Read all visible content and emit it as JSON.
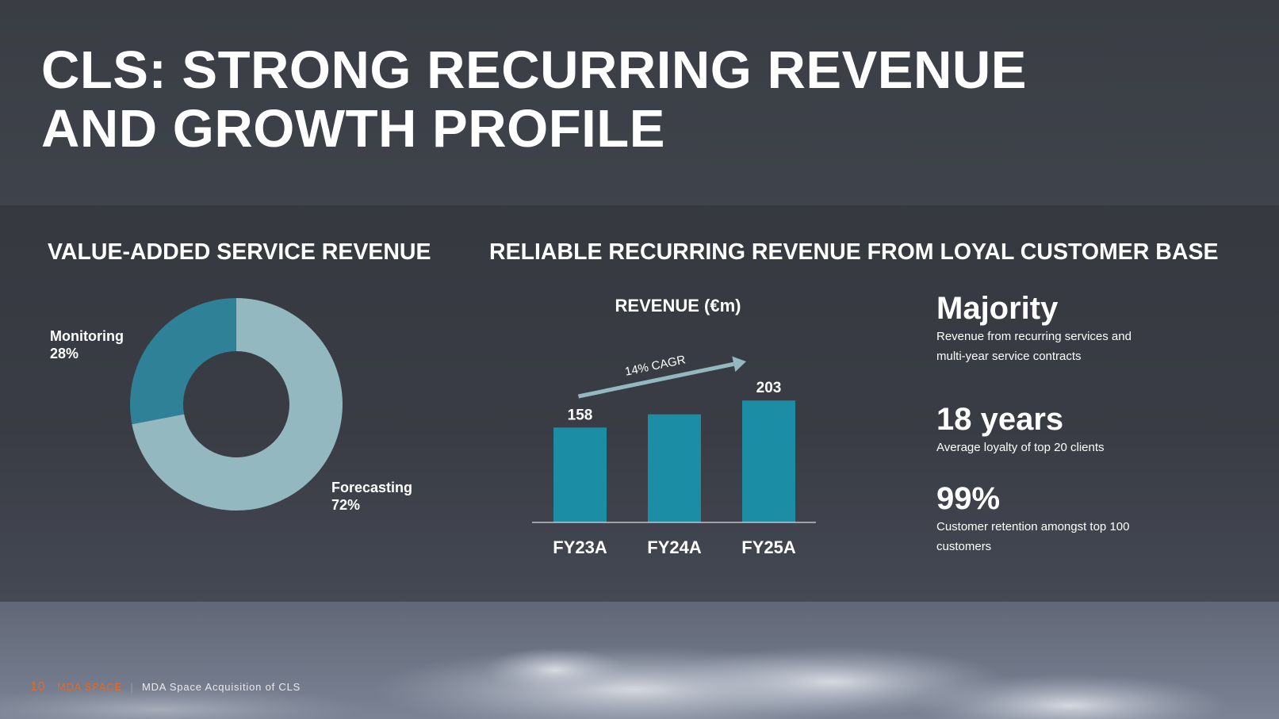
{
  "title": {
    "line1": "CLS: STRONG RECURRING REVENUE",
    "line2": "AND GROWTH PROFILE"
  },
  "sections": {
    "left_heading": "VALUE-ADDED SERVICE REVENUE",
    "right_heading": "RELIABLE RECURRING REVENUE FROM LOYAL CUSTOMER BASE"
  },
  "colors": {
    "accent_teal": "#1b8ea6",
    "monitoring_slice": "#2f8197",
    "forecasting_slice": "#93b8c0",
    "cagr_arrow": "#93b8c0",
    "footer_orange": "#e36a2a"
  },
  "chart_data": [
    {
      "type": "pie",
      "title": "",
      "categories": [
        "Monitoring",
        "Forecasting"
      ],
      "values": [
        28,
        72
      ],
      "labels": [
        {
          "name": "Monitoring",
          "pct": "28%"
        },
        {
          "name": "Forecasting",
          "pct": "72%"
        }
      ],
      "donut": true
    },
    {
      "type": "bar",
      "title": "REVENUE (€m)",
      "categories": [
        "FY23A",
        "FY24A",
        "FY25A"
      ],
      "values": [
        158,
        180,
        203
      ],
      "data_labels": [
        "158",
        "",
        "203"
      ],
      "annotation": "14% CAGR",
      "xlabel": "",
      "ylabel": "",
      "ylim": [
        0,
        210
      ],
      "grid": false
    }
  ],
  "kpis": [
    {
      "value": "Majority",
      "desc_lines": [
        "Revenue from recurring services and",
        "multi-year service contracts"
      ]
    },
    {
      "value": "18 years",
      "desc_lines": [
        "Average loyalty of top 20 clients"
      ]
    },
    {
      "value": "99%",
      "desc_lines": [
        "Customer retention amongst top 100 customers"
      ]
    }
  ],
  "footer": {
    "page": "10",
    "brand": "MDA SPACE",
    "separator": "|",
    "subtitle": "MDA Space Acquisition of CLS"
  }
}
